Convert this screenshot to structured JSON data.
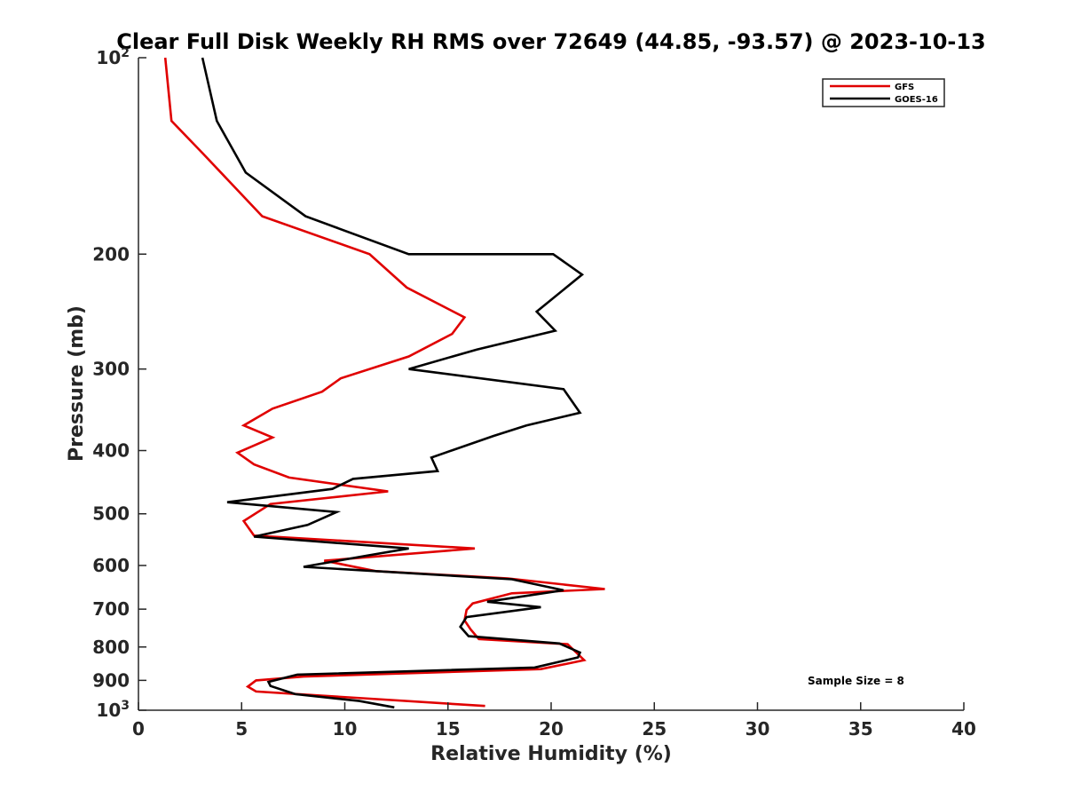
{
  "chart_data": {
    "type": "line",
    "title": "Clear Full Disk Weekly RH RMS over 72649 (44.85, -93.57) @ 2023-10-13",
    "xlabel": "Relative Humidity (%)",
    "ylabel": "Pressure (mb)",
    "xlim": [
      0,
      40
    ],
    "ylim": [
      100,
      1000
    ],
    "y_scale": "log",
    "y_reversed": true,
    "grid": false,
    "legend_position": "top-right",
    "annotation": "Sample Size = 8",
    "x_ticks": [
      "0",
      "5",
      "10",
      "15",
      "20",
      "25",
      "30",
      "35",
      "40"
    ],
    "y_ticks": [
      {
        "value": 100,
        "base": "10",
        "exp": "2"
      },
      {
        "value": 200,
        "label": "200"
      },
      {
        "value": 300,
        "label": "300"
      },
      {
        "value": 400,
        "label": "400"
      },
      {
        "value": 500,
        "label": "500"
      },
      {
        "value": 600,
        "label": "600"
      },
      {
        "value": 700,
        "label": "700"
      },
      {
        "value": 800,
        "label": "800"
      },
      {
        "value": 900,
        "label": "900"
      },
      {
        "value": 1000,
        "base": "10",
        "exp": "3"
      }
    ],
    "series": [
      {
        "name": "GFS",
        "color": "#e00000",
        "points": [
          [
            1.3,
            100
          ],
          [
            1.6,
            125
          ],
          [
            3.1,
            140
          ],
          [
            6.0,
            175
          ],
          [
            11.2,
            200
          ],
          [
            13.0,
            225
          ],
          [
            15.8,
            250
          ],
          [
            15.2,
            265
          ],
          [
            13.1,
            287
          ],
          [
            9.8,
            310
          ],
          [
            8.9,
            325
          ],
          [
            6.5,
            345
          ],
          [
            5.1,
            366
          ],
          [
            6.5,
            382
          ],
          [
            4.8,
            403
          ],
          [
            5.6,
            420
          ],
          [
            7.3,
            440
          ],
          [
            12.1,
            462
          ],
          [
            6.4,
            483
          ],
          [
            5.1,
            513
          ],
          [
            5.6,
            540
          ],
          [
            16.3,
            565
          ],
          [
            9.0,
            590
          ],
          [
            11.5,
            612
          ],
          [
            17.9,
            628
          ],
          [
            22.6,
            652
          ],
          [
            18.1,
            662
          ],
          [
            16.2,
            686
          ],
          [
            15.9,
            702
          ],
          [
            15.8,
            728
          ],
          [
            16.1,
            752
          ],
          [
            16.5,
            778
          ],
          [
            20.8,
            792
          ],
          [
            21.6,
            838
          ],
          [
            19.5,
            865
          ],
          [
            8.0,
            888
          ],
          [
            5.7,
            900
          ],
          [
            5.3,
            920
          ],
          [
            5.7,
            936
          ],
          [
            16.8,
            985
          ]
        ]
      },
      {
        "name": "GOES-16",
        "color": "#000000",
        "points": [
          [
            3.1,
            100
          ],
          [
            3.8,
            125
          ],
          [
            5.2,
            150
          ],
          [
            8.1,
            175
          ],
          [
            13.1,
            200
          ],
          [
            20.1,
            200
          ],
          [
            21.5,
            215
          ],
          [
            19.3,
            245
          ],
          [
            20.2,
            262
          ],
          [
            16.4,
            280
          ],
          [
            13.1,
            300
          ],
          [
            20.6,
            322
          ],
          [
            21.4,
            350
          ],
          [
            18.8,
            366
          ],
          [
            17.2,
            380
          ],
          [
            14.2,
            410
          ],
          [
            14.5,
            430
          ],
          [
            10.4,
            442
          ],
          [
            9.4,
            458
          ],
          [
            4.3,
            480
          ],
          [
            9.6,
            497
          ],
          [
            8.2,
            520
          ],
          [
            5.6,
            542
          ],
          [
            13.1,
            565
          ],
          [
            11.0,
            580
          ],
          [
            8.0,
            603
          ],
          [
            18.1,
            630
          ],
          [
            20.6,
            655
          ],
          [
            18.5,
            670
          ],
          [
            16.9,
            682
          ],
          [
            19.5,
            695
          ],
          [
            15.9,
            720
          ],
          [
            15.6,
            745
          ],
          [
            16.0,
            770
          ],
          [
            20.4,
            790
          ],
          [
            21.4,
            816
          ],
          [
            21.3,
            830
          ],
          [
            19.2,
            860
          ],
          [
            7.7,
            882
          ],
          [
            6.3,
            905
          ],
          [
            6.4,
            918
          ],
          [
            7.6,
            945
          ],
          [
            10.7,
            968
          ],
          [
            12.4,
            990
          ]
        ]
      }
    ]
  }
}
